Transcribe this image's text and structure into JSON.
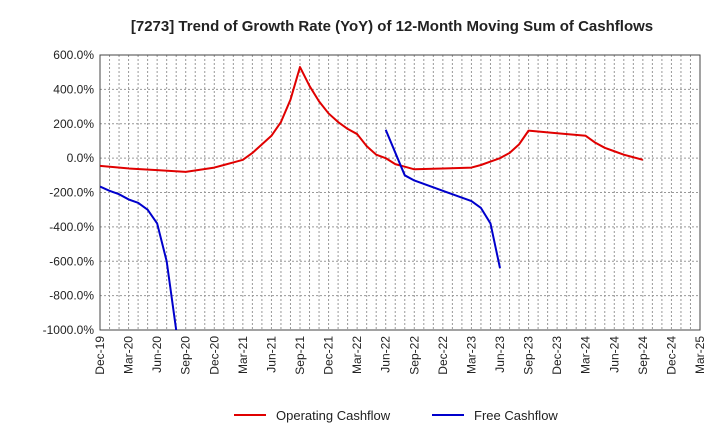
{
  "chart_data": {
    "type": "line",
    "title": "[7273]  Trend of Growth Rate (YoY) of 12-Month Moving Sum of Cashflows",
    "xlabel": "",
    "ylabel": "",
    "ylim": [
      -1000,
      600
    ],
    "y_ticks": [
      600,
      400,
      200,
      0,
      -200,
      -400,
      -600,
      -800,
      -1000
    ],
    "y_tick_labels": [
      "600.0%",
      "400.0%",
      "200.0%",
      "0.0%",
      "-200.0%",
      "-400.0%",
      "-600.0%",
      "-800.0%",
      "-1000.0%"
    ],
    "x_tick_labels": [
      "Dec-19",
      "Mar-20",
      "Jun-20",
      "Sep-20",
      "Dec-20",
      "Mar-21",
      "Jun-21",
      "Sep-21",
      "Dec-21",
      "Mar-22",
      "Jun-22",
      "Sep-22",
      "Dec-22",
      "Mar-23",
      "Jun-23",
      "Sep-23",
      "Dec-23",
      "Mar-24",
      "Jun-24",
      "Sep-24",
      "Dec-24",
      "Mar-25"
    ],
    "x_range": [
      "2019-12",
      "2025-03"
    ],
    "grid": true,
    "legend_position": "bottom",
    "series": [
      {
        "name": "Operating Cashflow",
        "color": "#e00000",
        "x": [
          "2019-12",
          "2020-03",
          "2020-06",
          "2020-09",
          "2020-12",
          "2021-01",
          "2021-02",
          "2021-03",
          "2021-04",
          "2021-05",
          "2021-06",
          "2021-07",
          "2021-08",
          "2021-09",
          "2021-10",
          "2021-11",
          "2021-12",
          "2022-01",
          "2022-02",
          "2022-03",
          "2022-04",
          "2022-05",
          "2022-06",
          "2022-07",
          "2022-08",
          "2022-09",
          "2022-12",
          "2023-03",
          "2023-04",
          "2023-05",
          "2023-06",
          "2023-07",
          "2023-08",
          "2023-09",
          "2023-12",
          "2024-03",
          "2024-04",
          "2024-05",
          "2024-06",
          "2024-07",
          "2024-08",
          "2024-09"
        ],
        "y": [
          -45,
          -60,
          -70,
          -80,
          -55,
          -40,
          -25,
          -10,
          30,
          80,
          130,
          210,
          340,
          530,
          420,
          330,
          260,
          210,
          170,
          140,
          70,
          20,
          0,
          -35,
          -50,
          -65,
          -60,
          -55,
          -40,
          -20,
          0,
          30,
          80,
          160,
          145,
          130,
          90,
          60,
          40,
          20,
          5,
          -10
        ]
      },
      {
        "name": "Free Cashflow",
        "color": "#0000cc",
        "x": [
          "2019-12",
          "2020-01",
          "2020-02",
          "2020-03",
          "2020-04",
          "2020-05",
          "2020-06",
          "2020-07",
          "2020-08"
        ],
        "y": [
          -165,
          -190,
          -210,
          -240,
          -260,
          -300,
          -380,
          -600,
          -1000
        ]
      },
      {
        "name": "Free Cashflow",
        "color": "#0000cc",
        "x": [
          "2022-06",
          "2022-08",
          "2022-09",
          "2022-12",
          "2023-03",
          "2023-04",
          "2023-05",
          "2023-06"
        ],
        "y": [
          165,
          -100,
          -130,
          -190,
          -250,
          -290,
          -380,
          -640
        ]
      }
    ]
  }
}
